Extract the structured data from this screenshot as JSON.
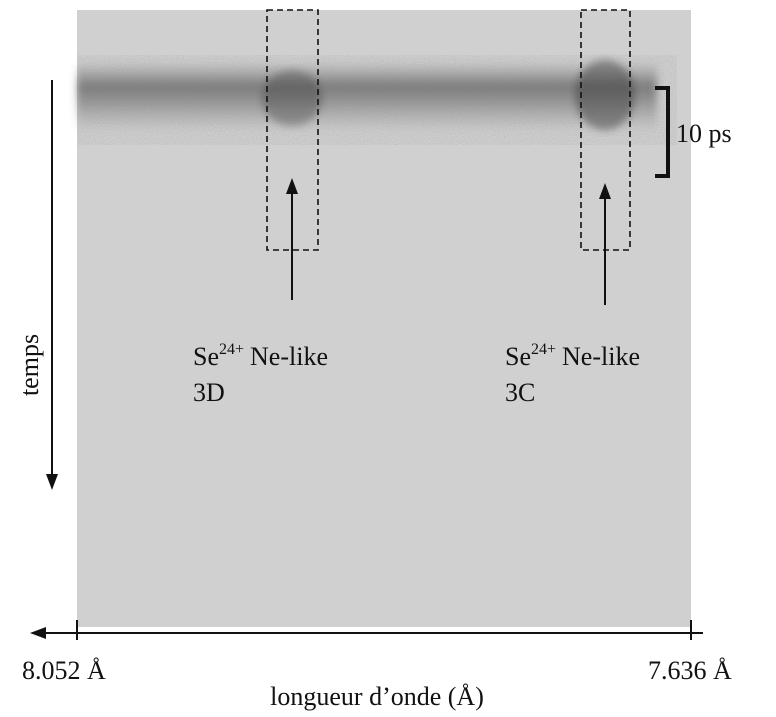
{
  "axes": {
    "time_label": "temps",
    "wavelength_label": "longueur d’onde (Å)",
    "left_label": "8.052 Å",
    "right_label": "7.636 Å"
  },
  "scale_label": "10 ps",
  "annotations": [
    {
      "element": "Se",
      "charge": "24+",
      "label": "Ne-like",
      "line": "3D"
    },
    {
      "element": "Se",
      "charge": "24+",
      "label": "Ne-like",
      "line": "3C"
    }
  ]
}
